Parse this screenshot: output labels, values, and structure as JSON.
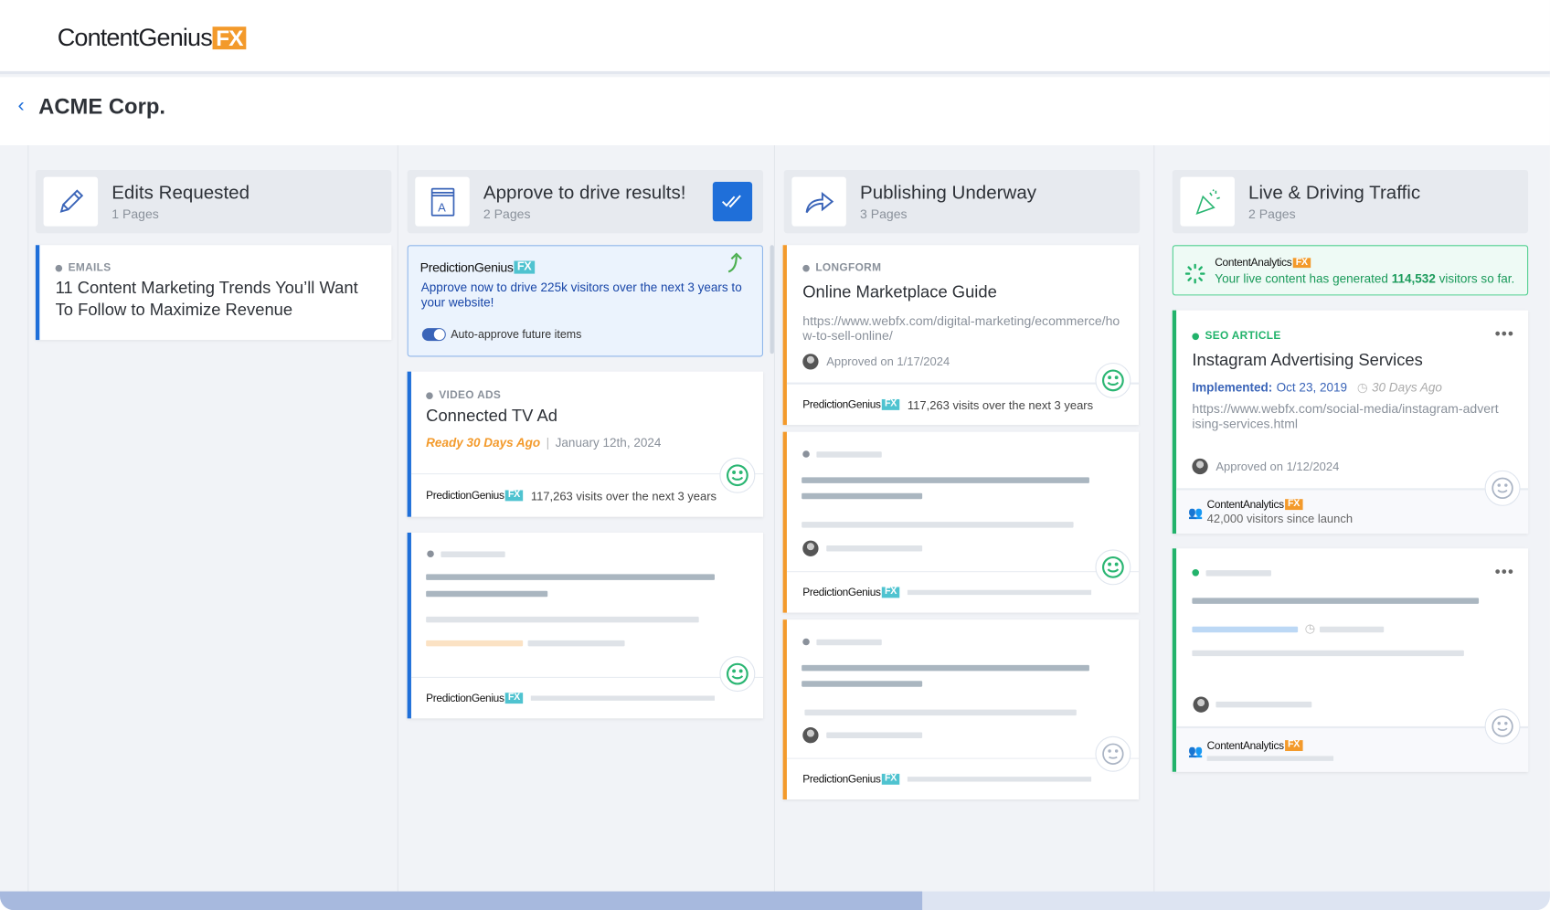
{
  "app": {
    "logo_text": "ContentGenius",
    "logo_badge": "FX"
  },
  "page": {
    "title": "ACME Corp."
  },
  "columns": [
    {
      "title": "Edits Requested",
      "count": "1 Pages",
      "icon": "pencil-icon"
    },
    {
      "title": "Approve to drive results!",
      "count": "2 Pages",
      "icon": "book-icon"
    },
    {
      "title": "Publishing Underway",
      "count": "3 Pages",
      "icon": "share-arrow-icon"
    },
    {
      "title": "Live & Driving Traffic",
      "count": "2 Pages",
      "icon": "party-popper-icon"
    }
  ],
  "edits": {
    "card": {
      "tag": "EMAILS",
      "title": "11 Content Marketing Trends You’ll Want To Follow to Maximize Revenue"
    }
  },
  "approve": {
    "prediction": {
      "brand": "PredictionGenius",
      "badge": "FX",
      "message": "Approve now to drive 225k visitors over the next 3 years to your website!",
      "toggle_label": "Auto-approve future items",
      "toggle_on": true
    },
    "card": {
      "tag": "VIDEO ADS",
      "title": "Connected TV Ad",
      "ready": "Ready 30 Days Ago",
      "date": "January 12th, 2024",
      "brand": "PredictionGenius",
      "badge": "FX",
      "visits": "117,263 visits over the next 3 years"
    },
    "skeleton_brand": "PredictionGenius"
  },
  "publishing": {
    "card": {
      "tag": "LONGFORM",
      "title": "Online Marketplace Guide",
      "url": "https://www.webfx.com/digital-marketing/ecommerce/how-to-sell-online/",
      "approved": "Approved on 1/17/2024",
      "brand": "PredictionGenius",
      "badge": "FX",
      "visits": "117,263 visits over the next 3 years"
    },
    "skeleton_brand": "PredictionGenius"
  },
  "live": {
    "banner": {
      "brand": "ContentAnalytics",
      "badge": "FX",
      "text_before": "Your live content has generated ",
      "visitors": "114,532",
      "text_after": " visitors so far."
    },
    "card": {
      "tag": "SEO ARTICLE",
      "title": "Instagram Advertising Services",
      "implemented_label": "Implemented:",
      "implemented_date": "Oct 23, 2019",
      "ago": "30 Days Ago",
      "url": "https://www.webfx.com/social-media/instagram-advertising-services.html",
      "approved": "Approved on 1/12/2024",
      "brand": "ContentAnalytics",
      "badge": "FX",
      "visitors": "42,000 visitors since launch"
    },
    "skeleton_brand": "ContentAnalytics"
  },
  "colors": {
    "accent": "#1f6fd9",
    "orange": "#f39a2b",
    "green": "#22b36b"
  }
}
